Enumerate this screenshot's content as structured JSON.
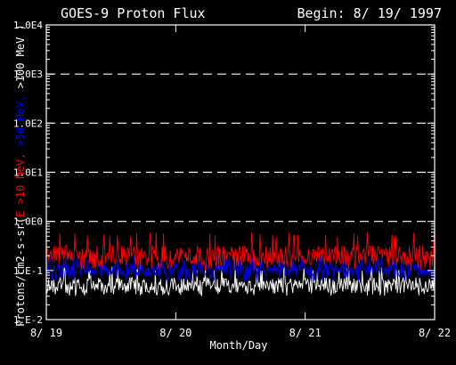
{
  "chart_data": {
    "type": "line",
    "title": "GOES-9 Proton Flux",
    "subtitle": "Begin: 8/ 19/ 1997",
    "xlabel": "Month/Day",
    "ylabel_parts": [
      {
        "text": "Protons/cm2-s-sr(",
        "color": "#ffffff"
      },
      {
        "text": "E >10 MeV,",
        "color": "#ff0000"
      },
      {
        "text": " >50 MeV,",
        "color": "#0000ff"
      },
      {
        "text": " >100 MeV )",
        "color": "#ffffff"
      }
    ],
    "x_ticks": [
      "8/ 19",
      "8/ 20",
      "8/ 21",
      "8/ 22"
    ],
    "y_ticks": [
      "1.E-2",
      "1.E-1",
      "1.0E0",
      "1.0E1",
      "1.0E2",
      "1.0E3",
      "1.0E4"
    ],
    "xlim": [
      0,
      3
    ],
    "ylim_log10": [
      -2,
      4
    ],
    "y_scale": "log",
    "grid": "dashed horizontal at 1.0E0 through 1.0E3",
    "series": [
      {
        "name": "E >10 MeV",
        "color": "#ff0000",
        "typical": 0.2,
        "range": [
          0.1,
          0.6
        ]
      },
      {
        "name": ">50 MeV",
        "color": "#0000ff",
        "typical": 0.1,
        "range": [
          0.06,
          0.2
        ]
      },
      {
        "name": ">100 MeV",
        "color": "#ffffff",
        "typical": 0.05,
        "range": [
          0.03,
          0.12
        ]
      }
    ]
  }
}
